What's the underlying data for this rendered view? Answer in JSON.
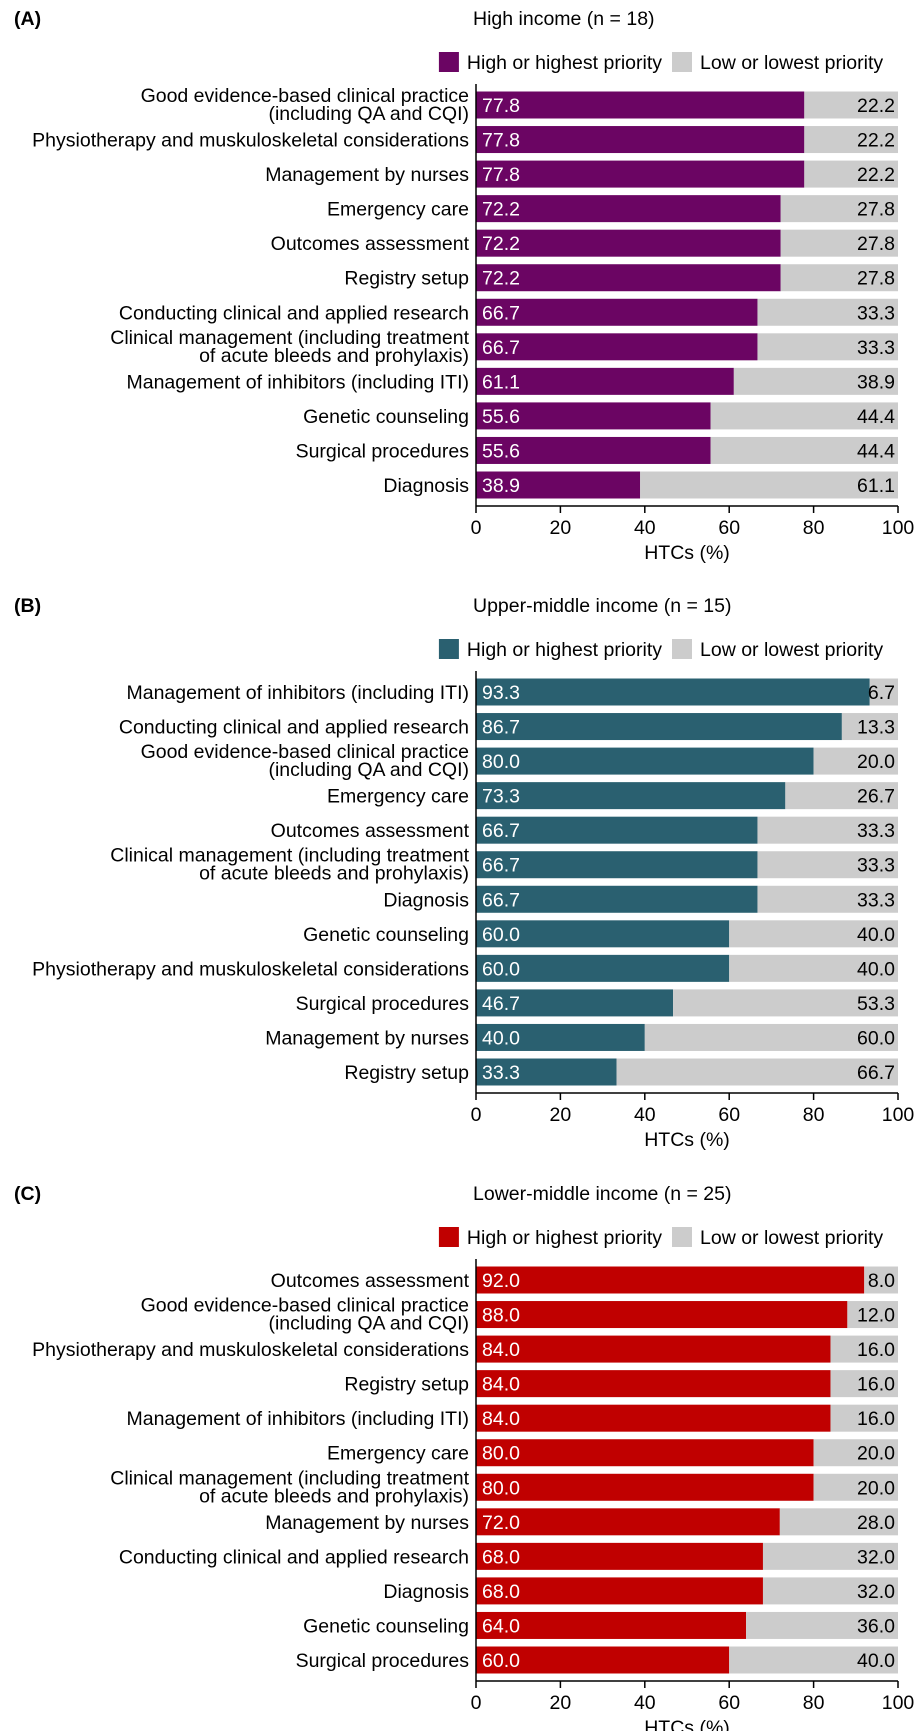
{
  "colors": {
    "low_priority": "#cccccc",
    "axis": "#000000"
  },
  "chart_data": [
    {
      "type": "bar",
      "orientation": "horizontal",
      "stacked": true,
      "panel_label": "(A)",
      "title": "High income (n = 18)",
      "xlabel": "HTCs (%)",
      "xlim": [
        0,
        100
      ],
      "xticks": [
        "0",
        "20",
        "40",
        "60",
        "80",
        "100"
      ],
      "legend_position": "top-right",
      "series": [
        {
          "name": "High or highest priority",
          "color": "#6b0563"
        },
        {
          "name": "Low or lowest priority",
          "color": "#cccccc"
        }
      ],
      "categories": [
        [
          "Good evidence-based clinical practice",
          "(including QA and CQI)"
        ],
        [
          "Physiotherapy and muskuloskeletal considerations"
        ],
        [
          "Management by nurses"
        ],
        [
          "Emergency care"
        ],
        [
          "Outcomes assessment"
        ],
        [
          "Registry setup"
        ],
        [
          "Conducting clinical and applied research"
        ],
        [
          "Clinical management (including treatment",
          "of acute bleeds and prohylaxis)"
        ],
        [
          "Management of inhibitors (including ITI)"
        ],
        [
          "Genetic counseling"
        ],
        [
          "Surgical procedures"
        ],
        [
          "Diagnosis"
        ]
      ],
      "high_values": [
        "77.8",
        "77.8",
        "77.8",
        "72.2",
        "72.2",
        "72.2",
        "66.7",
        "66.7",
        "61.1",
        "55.6",
        "55.6",
        "38.9"
      ],
      "low_values": [
        "22.2",
        "22.2",
        "22.2",
        "27.8",
        "27.8",
        "27.8",
        "33.3",
        "33.3",
        "38.9",
        "44.4",
        "44.4",
        "61.1"
      ]
    },
    {
      "type": "bar",
      "orientation": "horizontal",
      "stacked": true,
      "panel_label": "(B)",
      "title": "Upper-middle income (n = 15)",
      "xlabel": "HTCs (%)",
      "xlim": [
        0,
        100
      ],
      "xticks": [
        "0",
        "20",
        "40",
        "60",
        "80",
        "100"
      ],
      "legend_position": "top-right",
      "series": [
        {
          "name": "High or highest priority",
          "color": "#2a6070"
        },
        {
          "name": "Low or lowest priority",
          "color": "#cccccc"
        }
      ],
      "categories": [
        [
          "Management of inhibitors (including ITI)"
        ],
        [
          "Conducting clinical and applied research"
        ],
        [
          "Good evidence-based clinical practice",
          "(including QA and CQI)"
        ],
        [
          "Emergency care"
        ],
        [
          "Outcomes assessment"
        ],
        [
          "Clinical management (including treatment",
          "of acute bleeds and prohylaxis)"
        ],
        [
          "Diagnosis"
        ],
        [
          "Genetic counseling"
        ],
        [
          "Physiotherapy and muskuloskeletal considerations"
        ],
        [
          "Surgical procedures"
        ],
        [
          "Management by nurses"
        ],
        [
          "Registry setup"
        ]
      ],
      "high_values": [
        "93.3",
        "86.7",
        "80.0",
        "73.3",
        "66.7",
        "66.7",
        "66.7",
        "60.0",
        "60.0",
        "46.7",
        "40.0",
        "33.3"
      ],
      "low_values": [
        "6.7",
        "13.3",
        "20.0",
        "26.7",
        "33.3",
        "33.3",
        "33.3",
        "40.0",
        "40.0",
        "53.3",
        "60.0",
        "66.7"
      ]
    },
    {
      "type": "bar",
      "orientation": "horizontal",
      "stacked": true,
      "panel_label": "(C)",
      "title": "Lower-middle income (n = 25)",
      "xlabel": "HTCs (%)",
      "xlim": [
        0,
        100
      ],
      "xticks": [
        "0",
        "20",
        "40",
        "60",
        "80",
        "100"
      ],
      "legend_position": "top-right",
      "series": [
        {
          "name": "High or highest priority",
          "color": "#c00000"
        },
        {
          "name": "Low or lowest priority",
          "color": "#cccccc"
        }
      ],
      "categories": [
        [
          "Outcomes assessment"
        ],
        [
          "Good evidence-based clinical practice",
          "(including QA and CQI)"
        ],
        [
          "Physiotherapy and muskuloskeletal considerations"
        ],
        [
          "Registry setup"
        ],
        [
          "Management of inhibitors (including ITI)"
        ],
        [
          "Emergency care"
        ],
        [
          "Clinical management (including treatment",
          "of acute bleeds and prohylaxis)"
        ],
        [
          "Management by nurses"
        ],
        [
          "Conducting clinical and applied research"
        ],
        [
          "Diagnosis"
        ],
        [
          "Genetic counseling"
        ],
        [
          "Surgical procedures"
        ]
      ],
      "high_values": [
        "92.0",
        "88.0",
        "84.0",
        "84.0",
        "84.0",
        "80.0",
        "80.0",
        "72.0",
        "68.0",
        "68.0",
        "64.0",
        "60.0"
      ],
      "low_values": [
        "8.0",
        "12.0",
        "16.0",
        "16.0",
        "16.0",
        "20.0",
        "20.0",
        "28.0",
        "32.0",
        "32.0",
        "36.0",
        "40.0"
      ]
    }
  ]
}
